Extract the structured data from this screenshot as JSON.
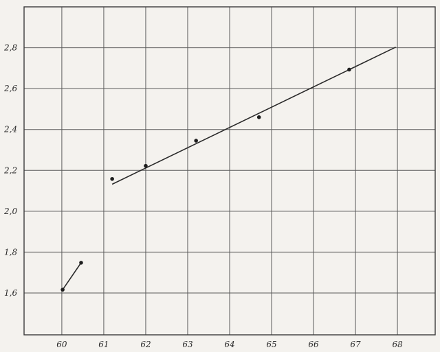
{
  "chart_data": {
    "type": "scatter",
    "title": "",
    "xlabel": "",
    "ylabel": "",
    "xlim": [
      59.1,
      68.9
    ],
    "ylim": [
      1.395,
      3.0
    ],
    "grid": true,
    "x_ticks": [
      60,
      61,
      62,
      63,
      64,
      65,
      66,
      67,
      68
    ],
    "x_tick_labels": [
      "60",
      "61",
      "62",
      "63",
      "64",
      "65",
      "66",
      "67",
      "68"
    ],
    "y_ticks": [
      1.6,
      1.8,
      2.0,
      2.2,
      2.4,
      2.6,
      2.8
    ],
    "y_tick_labels": [
      "1,6",
      "1,8",
      "2,0",
      "2,2",
      "2,4",
      "2,6",
      "2,8"
    ],
    "series": [
      {
        "kind": "points",
        "points": [
          {
            "x": 60.02,
            "y": 1.616
          },
          {
            "x": 60.46,
            "y": 1.748
          },
          {
            "x": 61.2,
            "y": 2.158
          },
          {
            "x": 62.0,
            "y": 2.222
          },
          {
            "x": 63.2,
            "y": 2.345
          },
          {
            "x": 64.7,
            "y": 2.46
          },
          {
            "x": 66.85,
            "y": 2.693
          }
        ]
      },
      {
        "kind": "line",
        "points": [
          {
            "x": 60.02,
            "y": 1.616
          },
          {
            "x": 60.46,
            "y": 1.748
          }
        ]
      },
      {
        "kind": "line",
        "points": [
          {
            "x": 61.2,
            "y": 2.132
          },
          {
            "x": 67.96,
            "y": 2.803
          }
        ]
      }
    ]
  }
}
